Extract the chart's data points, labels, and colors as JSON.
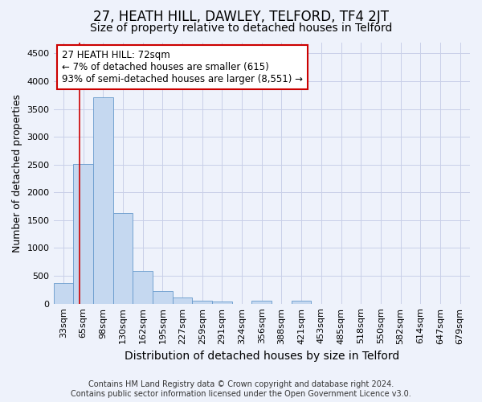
{
  "title": "27, HEATH HILL, DAWLEY, TELFORD, TF4 2JT",
  "subtitle": "Size of property relative to detached houses in Telford",
  "xlabel": "Distribution of detached houses by size in Telford",
  "ylabel": "Number of detached properties",
  "footer_line1": "Contains HM Land Registry data © Crown copyright and database right 2024.",
  "footer_line2": "Contains public sector information licensed under the Open Government Licence v3.0.",
  "categories": [
    "33sqm",
    "65sqm",
    "98sqm",
    "130sqm",
    "162sqm",
    "195sqm",
    "227sqm",
    "259sqm",
    "291sqm",
    "324sqm",
    "356sqm",
    "388sqm",
    "421sqm",
    "453sqm",
    "485sqm",
    "518sqm",
    "550sqm",
    "582sqm",
    "614sqm",
    "647sqm",
    "679sqm"
  ],
  "values": [
    370,
    2510,
    3710,
    1630,
    590,
    230,
    105,
    60,
    38,
    0,
    50,
    0,
    55,
    0,
    0,
    0,
    0,
    0,
    0,
    0,
    0
  ],
  "bar_color": "#c5d8f0",
  "bar_edgecolor": "#6699cc",
  "property_line_x": 0.82,
  "property_line_color": "#cc0000",
  "annotation_text": "27 HEATH HILL: 72sqm\n← 7% of detached houses are smaller (615)\n93% of semi-detached houses are larger (8,551) →",
  "annotation_box_color": "#ffffff",
  "annotation_box_edgecolor": "#cc0000",
  "ylim": [
    0,
    4700
  ],
  "yticks": [
    0,
    500,
    1000,
    1500,
    2000,
    2500,
    3000,
    3500,
    4000,
    4500
  ],
  "background_color": "#eef2fb",
  "plot_background": "#eef2fb",
  "grid_color": "#c8cfe8",
  "title_fontsize": 12,
  "subtitle_fontsize": 10,
  "ylabel_fontsize": 9,
  "xlabel_fontsize": 10,
  "tick_fontsize": 8,
  "footer_fontsize": 7
}
